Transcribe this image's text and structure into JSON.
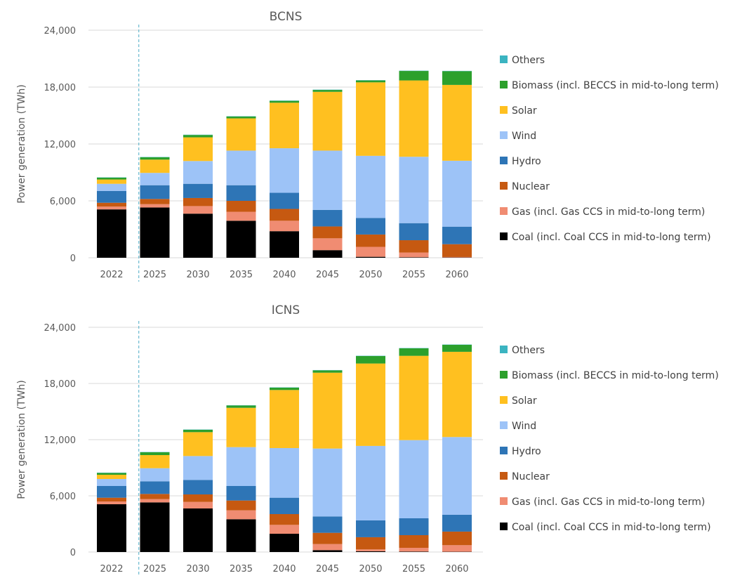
{
  "chart_data": [
    {
      "type": "bar",
      "stacked": true,
      "title": "BCNS",
      "xlabel": "",
      "ylabel": "Power generation (TWh)",
      "ylim": [
        0,
        24000
      ],
      "yticks": [
        "0",
        "6,000",
        "12,000",
        "18,000",
        "24,000"
      ],
      "categories": [
        "2022",
        "2025",
        "2030",
        "2035",
        "2040",
        "2045",
        "2050",
        "2055",
        "2060"
      ],
      "gridlines": true,
      "legend_position": "right",
      "divider_after": "2022",
      "series": [
        {
          "name": "Coal (incl. Coal CCS in mid-to-long term)",
          "color": "#000000",
          "values": [
            5100,
            5300,
            4650,
            3900,
            2800,
            800,
            100,
            50,
            30
          ]
        },
        {
          "name": "Gas (incl. Gas CCS in mid-to-long term)",
          "color": "#f08c72",
          "values": [
            300,
            350,
            800,
            950,
            1100,
            1250,
            1050,
            500,
            50
          ]
        },
        {
          "name": "Nuclear",
          "color": "#c65911",
          "values": [
            400,
            550,
            850,
            1150,
            1250,
            1250,
            1300,
            1300,
            1350
          ]
        },
        {
          "name": "Hydro",
          "color": "#2e75b6",
          "values": [
            1250,
            1450,
            1500,
            1650,
            1700,
            1750,
            1750,
            1800,
            1850
          ]
        },
        {
          "name": "Wind",
          "color": "#9dc3f7",
          "values": [
            750,
            1300,
            2400,
            3650,
            4700,
            6250,
            6550,
            7000,
            6950
          ]
        },
        {
          "name": "Solar",
          "color": "#ffc020",
          "values": [
            450,
            1400,
            2500,
            3400,
            4800,
            6200,
            7750,
            8050,
            8000
          ]
        },
        {
          "name": "Biomass (incl. BECCS in mid-to-long term)",
          "color": "#2ca02c",
          "values": [
            200,
            250,
            250,
            200,
            200,
            200,
            200,
            1000,
            1450
          ]
        },
        {
          "name": "Others",
          "color": "#3bb4c1",
          "values": [
            30,
            30,
            30,
            30,
            30,
            30,
            30,
            30,
            30
          ]
        }
      ]
    },
    {
      "type": "bar",
      "stacked": true,
      "title": "ICNS",
      "xlabel": "",
      "ylabel": "Power generation (TWh)",
      "ylim": [
        0,
        24000
      ],
      "yticks": [
        "0",
        "6,000",
        "12,000",
        "18,000",
        "24,000"
      ],
      "categories": [
        "2022",
        "2025",
        "2030",
        "2035",
        "2040",
        "2045",
        "2050",
        "2055",
        "2060"
      ],
      "gridlines": true,
      "legend_position": "right",
      "divider_after": "2022",
      "series": [
        {
          "name": "Coal (incl. Coal CCS in mid-to-long term)",
          "color": "#000000",
          "values": [
            5100,
            5300,
            4650,
            3500,
            1950,
            200,
            80,
            50,
            30
          ]
        },
        {
          "name": "Gas (incl. Gas CCS in mid-to-long term)",
          "color": "#f08c72",
          "values": [
            300,
            350,
            700,
            950,
            950,
            650,
            200,
            400,
            700
          ]
        },
        {
          "name": "Nuclear",
          "color": "#c65911",
          "values": [
            400,
            550,
            800,
            1050,
            1150,
            1200,
            1300,
            1350,
            1450
          ]
        },
        {
          "name": "Hydro",
          "color": "#2e75b6",
          "values": [
            1250,
            1350,
            1550,
            1550,
            1750,
            1750,
            1800,
            1800,
            1800
          ]
        },
        {
          "name": "Wind",
          "color": "#9dc3f7",
          "values": [
            750,
            1400,
            2550,
            4150,
            5300,
            7250,
            7950,
            8350,
            8300
          ]
        },
        {
          "name": "Solar",
          "color": "#ffc020",
          "values": [
            450,
            1400,
            2550,
            4200,
            6200,
            8100,
            8800,
            9000,
            9100
          ]
        },
        {
          "name": "Biomass (incl. BECCS in mid-to-long term)",
          "color": "#2ca02c",
          "values": [
            200,
            300,
            250,
            250,
            250,
            250,
            800,
            800,
            750
          ]
        },
        {
          "name": "Others",
          "color": "#3bb4c1",
          "values": [
            30,
            30,
            30,
            30,
            30,
            30,
            30,
            30,
            30
          ]
        }
      ]
    }
  ]
}
